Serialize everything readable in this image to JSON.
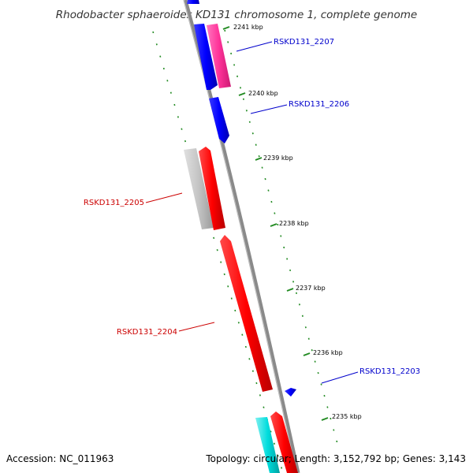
{
  "title": "Rhodobacter sphaeroides KD131 chromosome 1, complete genome",
  "footer": {
    "accession": "Accession: NC_011963",
    "summary": "Topology: circular; Length: 3,152,792 bp; Genes: 3,143"
  },
  "ticks": [
    {
      "label": "2241 kbp"
    },
    {
      "label": "2240 kbp"
    },
    {
      "label": "2239 kbp"
    },
    {
      "label": "2238 kbp"
    },
    {
      "label": "2237 kbp"
    },
    {
      "label": "2236 kbp"
    },
    {
      "label": "2235 kbp"
    }
  ],
  "genes": [
    {
      "label": "RSKD131_2207",
      "color": "#0000cc"
    },
    {
      "label": "RSKD131_2206",
      "color": "#0000cc"
    },
    {
      "label": "RSKD131_2205",
      "color": "#cc0000"
    },
    {
      "label": "RSKD131_2204",
      "color": "#cc0000"
    },
    {
      "label": "RSKD131_2203",
      "color": "#0000cc"
    }
  ],
  "colors": {
    "backbone": "#8a8a8a",
    "forward_cds": "#ff0000",
    "reverse_cds": "#0000ff",
    "other": "#ff3399",
    "rna": "#00cccc",
    "gray": "#c0c0c0",
    "tick_dots": "#228b22"
  }
}
